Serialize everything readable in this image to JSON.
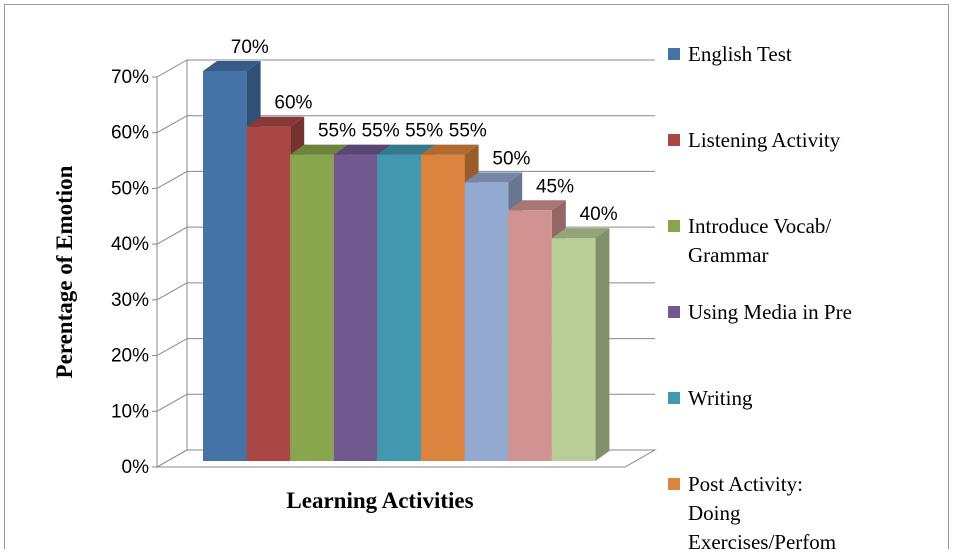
{
  "chart_data": {
    "type": "bar3d",
    "xlabel": "Learning Activities",
    "ylabel": "Perentage of Emotion",
    "categories": [
      null
    ],
    "ylim": [
      0,
      70
    ],
    "yticks": [
      {
        "value": 0,
        "label": "0%"
      },
      {
        "value": 10,
        "label": "10%"
      },
      {
        "value": 20,
        "label": "20%"
      },
      {
        "value": 30,
        "label": "30%"
      },
      {
        "value": 40,
        "label": "40%"
      },
      {
        "value": 50,
        "label": "50%"
      },
      {
        "value": 60,
        "label": "60%"
      },
      {
        "value": 70,
        "label": "70%"
      }
    ],
    "grid": true,
    "legend": "right",
    "series": [
      {
        "name": "English Test",
        "color": "#4572a7",
        "values": [
          70
        ],
        "value_labels": [
          "70%"
        ]
      },
      {
        "name": "Listening Activity",
        "color": "#aa4643",
        "values": [
          60
        ],
        "value_labels": [
          "60%"
        ]
      },
      {
        "name": "Introduce Vocab/ Grammar",
        "color": "#89a54e",
        "values": [
          55
        ],
        "value_labels": [
          "55%"
        ]
      },
      {
        "name": "Using Media in Pre",
        "color": "#71588f",
        "values": [
          55
        ],
        "value_labels": [
          "55%"
        ]
      },
      {
        "name": "Writing",
        "color": "#4198af",
        "values": [
          55
        ],
        "value_labels": [
          "55%"
        ]
      },
      {
        "name": "Post Activity: Doing Exercises/Perfom",
        "color": "#db843d",
        "values": [
          55
        ],
        "value_labels": [
          "55%"
        ]
      },
      {
        "name": null,
        "color": "#93a9cf",
        "values": [
          50
        ],
        "value_labels": [
          "50%"
        ]
      },
      {
        "name": null,
        "color": "#d19392",
        "values": [
          45
        ],
        "value_labels": [
          "45%"
        ]
      },
      {
        "name": null,
        "color": "#b9cd96",
        "values": [
          40
        ],
        "value_labels": [
          "40%"
        ]
      }
    ]
  }
}
